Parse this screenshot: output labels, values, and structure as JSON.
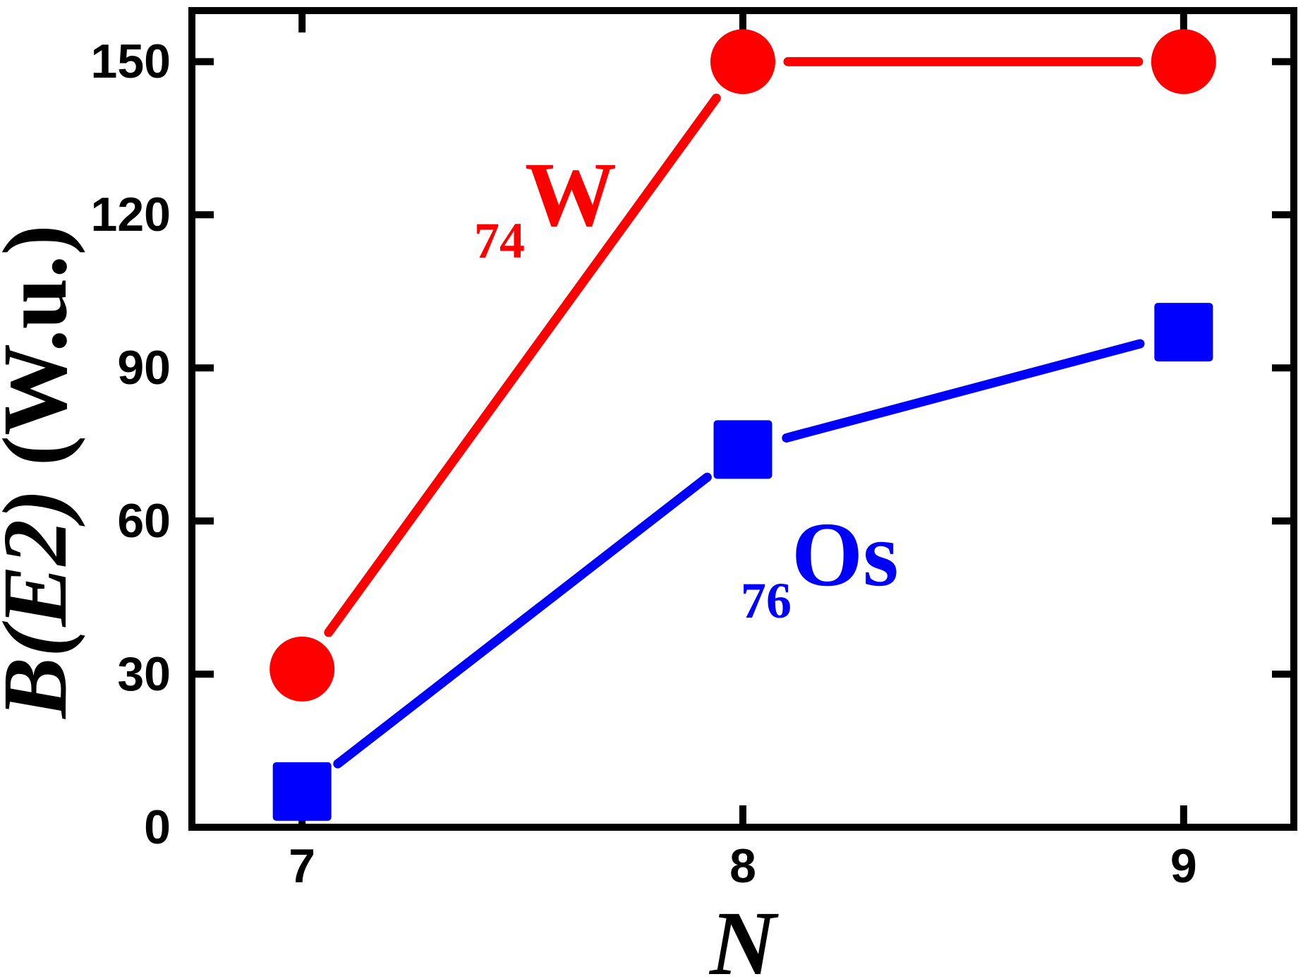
{
  "chart_data": {
    "type": "line",
    "title": "",
    "xlabel": "N",
    "ylabel": "B(E2) (W.u.)",
    "ylabel_quantity": "B(E2)",
    "ylabel_units": " (W.u.)",
    "x": [
      7,
      8,
      9
    ],
    "series": [
      {
        "name": "74W",
        "label_subscript": "74",
        "label_symbol": "W",
        "color": "#ff0000",
        "marker": "circle",
        "values": [
          31,
          150,
          150
        ]
      },
      {
        "name": "76Os",
        "label_subscript": "76",
        "label_symbol": "Os",
        "color": "#0000ff",
        "marker": "square",
        "values": [
          7,
          74,
          97
        ]
      }
    ],
    "xlim": [
      6.75,
      9.25
    ],
    "ylim": [
      0,
      160
    ],
    "xticks": [
      7,
      8,
      9
    ],
    "yticks": [
      0,
      30,
      60,
      90,
      120,
      150
    ],
    "x_tick_labels": [
      "7",
      "8",
      "9"
    ],
    "y_tick_labels": [
      "0",
      "30",
      "60",
      "90",
      "120",
      "150"
    ],
    "grid": false,
    "legend_position": "inline-annotations",
    "axis_color": "#000000",
    "background_color": "#ffffff"
  }
}
